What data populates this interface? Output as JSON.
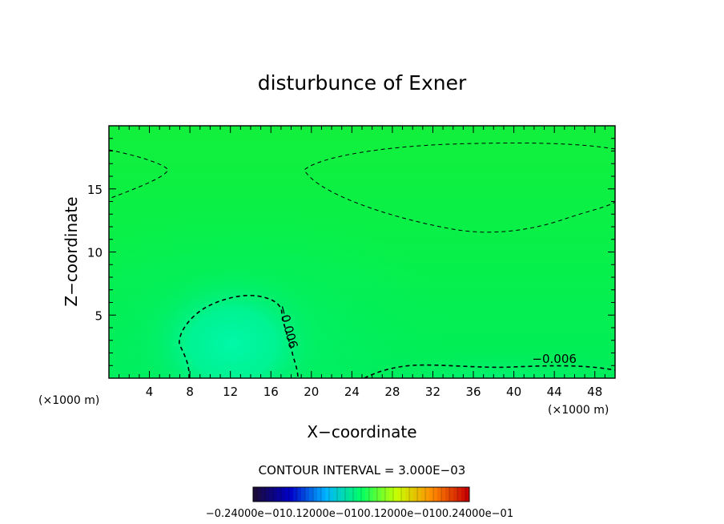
{
  "chart_data": {
    "type": "heatmap",
    "title": "disturbunce of Exner",
    "xlabel": "X−coordinate",
    "ylabel": "Z−coordinate",
    "x_unit": "(×1000 m)",
    "y_unit": "(×1000 m)",
    "xlim": [
      0,
      50
    ],
    "ylim": [
      0,
      20
    ],
    "x_ticks": [
      4,
      8,
      12,
      16,
      20,
      24,
      28,
      32,
      36,
      40,
      44,
      48
    ],
    "x_tick_labels": [
      "4",
      "8",
      "12",
      "16",
      "20",
      "24",
      "28",
      "32",
      "36",
      "40",
      "44",
      "48"
    ],
    "y_ticks": [
      5,
      10,
      15
    ],
    "y_tick_labels": [
      "5",
      "10",
      "15"
    ],
    "contour_interval_text": "CONTOUR INTERVAL = 3.000E−03",
    "contour_labels": [
      {
        "text": "−0.006",
        "x": 17.3,
        "z": 4.0,
        "rotate": 75
      },
      {
        "text": "−0.006",
        "x": 44.0,
        "z": 1.2,
        "rotate": 0
      }
    ],
    "colorbar": {
      "vmin": -0.024,
      "vmax": 0.024,
      "tick_labels_text": "−0.24000e−010.12000e−0100.12000e−0100.24000e−01",
      "colors": [
        "#1a0a3a",
        "#0000c8",
        "#00b4ff",
        "#00ff64",
        "#c8ff00",
        "#ff8c00",
        "#c80000"
      ]
    },
    "colors": {
      "background_field": "#00ee50",
      "upper_band": "#10f040",
      "lower_cyan": "#00f8a0",
      "dashed_contour": "#000000"
    }
  }
}
